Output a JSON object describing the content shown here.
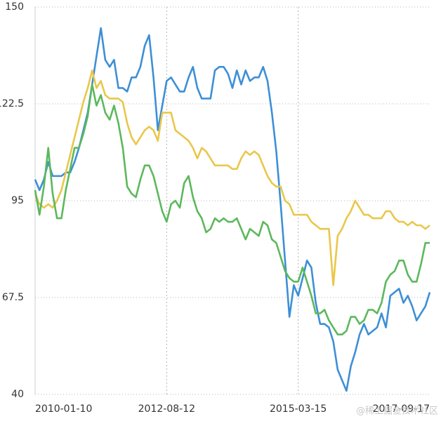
{
  "chart_data": {
    "type": "line",
    "categories": [
      "2010-01-10",
      null,
      null,
      null,
      null,
      null,
      null,
      null,
      null,
      null,
      null,
      null,
      null,
      null,
      null,
      null,
      null,
      null,
      null,
      null,
      null,
      null,
      null,
      null,
      null,
      null,
      null,
      null,
      null,
      null,
      "2012-08-12",
      null,
      null,
      null,
      null,
      null,
      null,
      null,
      null,
      null,
      null,
      null,
      null,
      null,
      null,
      null,
      null,
      null,
      null,
      null,
      null,
      null,
      null,
      null,
      null,
      null,
      null,
      null,
      null,
      null,
      "2015-03-15",
      null,
      null,
      null,
      null,
      null,
      null,
      null,
      null,
      null,
      null,
      null,
      null,
      null,
      null,
      null,
      null,
      null,
      null,
      null,
      null,
      null,
      null,
      null,
      null,
      null,
      null,
      null,
      null,
      null,
      "2017-09-17"
    ],
    "series": [
      {
        "color": "#3d8fd6",
        "values": [
          101,
          98,
          101,
          106,
          102,
          102,
          102,
          103,
          103,
          106,
          110,
          115,
          120,
          128,
          136,
          144,
          135,
          133,
          135,
          127,
          127,
          126,
          130,
          130,
          133,
          139,
          142,
          130,
          115,
          122,
          129,
          130,
          128,
          126,
          126,
          130,
          133,
          127,
          124,
          124,
          124,
          132,
          133,
          133,
          131,
          127,
          132,
          128,
          132,
          129,
          130,
          130,
          133,
          129,
          120,
          109,
          94,
          78,
          62,
          71,
          68,
          73,
          78,
          76,
          66,
          60,
          60,
          59,
          55,
          47,
          44,
          41,
          48,
          52,
          57,
          60,
          57,
          58,
          59,
          63,
          59,
          68,
          69,
          70,
          66,
          68,
          65,
          61,
          63,
          65,
          69
        ]
      },
      {
        "color": "#e9c74a",
        "values": [
          97,
          94,
          93,
          94,
          93,
          95,
          98,
          103,
          108,
          113,
          118,
          123,
          127,
          132,
          127,
          129,
          125,
          124,
          124,
          124,
          123,
          117,
          113,
          111,
          113,
          115,
          116,
          115,
          112,
          120,
          120,
          120,
          115,
          114,
          113,
          112,
          110,
          107,
          110,
          109,
          107,
          105,
          105,
          105,
          105,
          104,
          104,
          107,
          109,
          108,
          109,
          108,
          105,
          102,
          100,
          99,
          99,
          95,
          94,
          91,
          91,
          91,
          91,
          89,
          88,
          87,
          87,
          87,
          71,
          85,
          87,
          90,
          92,
          95,
          93,
          91,
          91,
          90,
          90,
          90,
          92,
          92,
          90,
          89,
          89,
          88,
          89,
          88,
          88,
          87,
          88
        ]
      },
      {
        "color": "#5cb85c",
        "values": [
          98,
          91,
          99,
          110,
          97,
          90,
          90,
          98,
          104,
          110,
          110,
          114,
          119,
          128,
          122,
          125,
          120,
          118,
          122,
          117,
          110,
          99,
          97,
          96,
          101,
          105,
          105,
          102,
          97,
          92,
          89,
          94,
          95,
          93,
          100,
          102,
          96,
          92,
          90,
          86,
          87,
          90,
          89,
          90,
          89,
          89,
          90,
          87,
          84,
          87,
          86,
          85,
          89,
          88,
          84,
          83,
          79,
          75,
          73,
          72,
          72,
          76,
          72,
          68,
          63,
          63,
          64,
          61,
          59,
          57,
          57,
          58,
          62,
          62,
          60,
          61,
          64,
          64,
          63,
          66,
          72,
          74,
          75,
          78,
          78,
          74,
          72,
          72,
          77,
          83,
          83
        ]
      }
    ],
    "ylim": [
      40,
      150
    ],
    "yticks": [
      40,
      67.5,
      95,
      122.5,
      150
    ],
    "grid": true,
    "watermark": "@稀土掘金技术社区"
  }
}
